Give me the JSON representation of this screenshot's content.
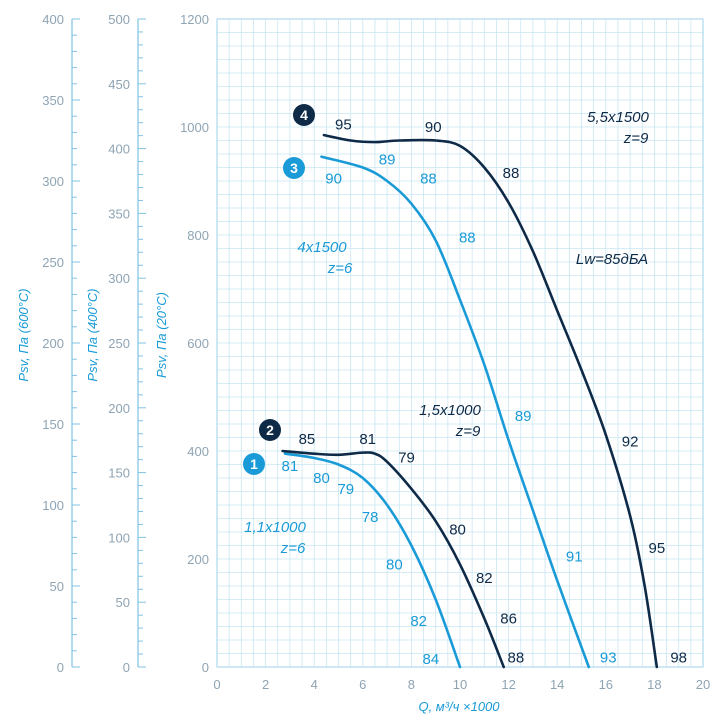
{
  "chart_data": {
    "type": "line",
    "title": "",
    "xlabel": "Q, м³/ч ×1000",
    "xlim": [
      0,
      20
    ],
    "x_ticks": [
      "0",
      "2",
      "4",
      "6",
      "8",
      "10",
      "12",
      "14",
      "16",
      "18",
      "20"
    ],
    "grid": true,
    "axes": [
      {
        "label": "Psv, Па (600°C)",
        "range": [
          0,
          400
        ],
        "ticks": [
          "0",
          "50",
          "100",
          "150",
          "200",
          "250",
          "300",
          "350",
          "400"
        ]
      },
      {
        "label": "Psv, Па (400°C)",
        "range": [
          0,
          500
        ],
        "ticks": [
          "0",
          "50",
          "100",
          "150",
          "200",
          "250",
          "300",
          "350",
          "400",
          "450",
          "500"
        ]
      },
      {
        "label": "Psv, Па (20°C)",
        "range": [
          0,
          1200
        ],
        "ticks": [
          "0",
          "200",
          "400",
          "600",
          "800",
          "1000",
          "1200"
        ]
      }
    ],
    "colors": {
      "light": "#1a9bd7",
      "dark": "#0e2a47",
      "grid": "#c9e6f3",
      "axis_text": "#8fa4b3"
    },
    "series": [
      {
        "marker": "1",
        "label_lines": [
          "1,1x1000",
          "z=6"
        ],
        "color": "#1a9bd7",
        "points": [
          [
            2.8,
            395
          ],
          [
            4,
            387
          ],
          [
            5,
            375
          ],
          [
            6,
            350
          ],
          [
            7,
            300
          ],
          [
            8,
            225
          ],
          [
            9,
            125
          ],
          [
            10,
            0
          ]
        ],
        "efficiency": [
          {
            "x": 3.0,
            "y": 372,
            "text": "81"
          },
          {
            "x": 4.3,
            "y": 350,
            "text": "80"
          },
          {
            "x": 5.3,
            "y": 330,
            "text": "79"
          },
          {
            "x": 6.3,
            "y": 278,
            "text": "78"
          },
          {
            "x": 7.3,
            "y": 190,
            "text": "80"
          },
          {
            "x": 8.3,
            "y": 85,
            "text": "82"
          },
          {
            "x": 8.8,
            "y": 15,
            "text": "84"
          }
        ]
      },
      {
        "marker": "2",
        "label_lines": [
          "1,5x1000",
          "z=9"
        ],
        "color": "#0e2a47",
        "points": [
          [
            2.7,
            400
          ],
          [
            4,
            395
          ],
          [
            5,
            393
          ],
          [
            6,
            397
          ],
          [
            6.5,
            395
          ],
          [
            7,
            380
          ],
          [
            8,
            330
          ],
          [
            9,
            270
          ],
          [
            10,
            190
          ],
          [
            11,
            90
          ],
          [
            11.8,
            0
          ]
        ],
        "efficiency": [
          {
            "x": 3.7,
            "y": 422,
            "text": "85"
          },
          {
            "x": 6.2,
            "y": 422,
            "text": "81"
          },
          {
            "x": 7.8,
            "y": 388,
            "text": "79"
          },
          {
            "x": 9.9,
            "y": 255,
            "text": "80"
          },
          {
            "x": 11.0,
            "y": 165,
            "text": "82"
          },
          {
            "x": 12.0,
            "y": 90,
            "text": "86"
          },
          {
            "x": 12.3,
            "y": 18,
            "text": "88"
          }
        ]
      },
      {
        "marker": "3",
        "label_lines": [
          "4x1500",
          "z=6"
        ],
        "color": "#1a9bd7",
        "points": [
          [
            4.3,
            945
          ],
          [
            6,
            925
          ],
          [
            7,
            900
          ],
          [
            8,
            858
          ],
          [
            9,
            790
          ],
          [
            10,
            680
          ],
          [
            11,
            560
          ],
          [
            12,
            420
          ],
          [
            13,
            290
          ],
          [
            14,
            160
          ],
          [
            15.3,
            0
          ]
        ],
        "efficiency": [
          {
            "x": 4.8,
            "y": 905,
            "text": "90"
          },
          {
            "x": 7.0,
            "y": 940,
            "text": "89"
          },
          {
            "x": 8.7,
            "y": 905,
            "text": "88"
          },
          {
            "x": 10.3,
            "y": 795,
            "text": "88"
          },
          {
            "x": 12.6,
            "y": 465,
            "text": "89"
          },
          {
            "x": 14.7,
            "y": 205,
            "text": "91"
          },
          {
            "x": 16.1,
            "y": 18,
            "text": "93"
          }
        ]
      },
      {
        "marker": "4",
        "label_lines": [
          "5,5x1500",
          "z=9"
        ],
        "color": "#0e2a47",
        "points": [
          [
            4.4,
            985
          ],
          [
            5.5,
            975
          ],
          [
            6.5,
            972
          ],
          [
            7.5,
            975
          ],
          [
            9,
            975
          ],
          [
            10,
            965
          ],
          [
            11,
            925
          ],
          [
            12,
            860
          ],
          [
            13,
            770
          ],
          [
            14,
            660
          ],
          [
            15,
            550
          ],
          [
            16,
            430
          ],
          [
            17,
            280
          ],
          [
            17.6,
            150
          ],
          [
            18.1,
            0
          ]
        ],
        "efficiency": [
          {
            "x": 5.2,
            "y": 1005,
            "text": "95"
          },
          {
            "x": 8.9,
            "y": 1000,
            "text": "90"
          },
          {
            "x": 12.1,
            "y": 915,
            "text": "88"
          },
          {
            "x": 17.0,
            "y": 418,
            "text": "92"
          },
          {
            "x": 18.1,
            "y": 220,
            "text": "95"
          },
          {
            "x": 19.0,
            "y": 18,
            "text": "98"
          }
        ]
      }
    ],
    "annotations": [
      {
        "text": "Lw=85дБА"
      }
    ]
  }
}
